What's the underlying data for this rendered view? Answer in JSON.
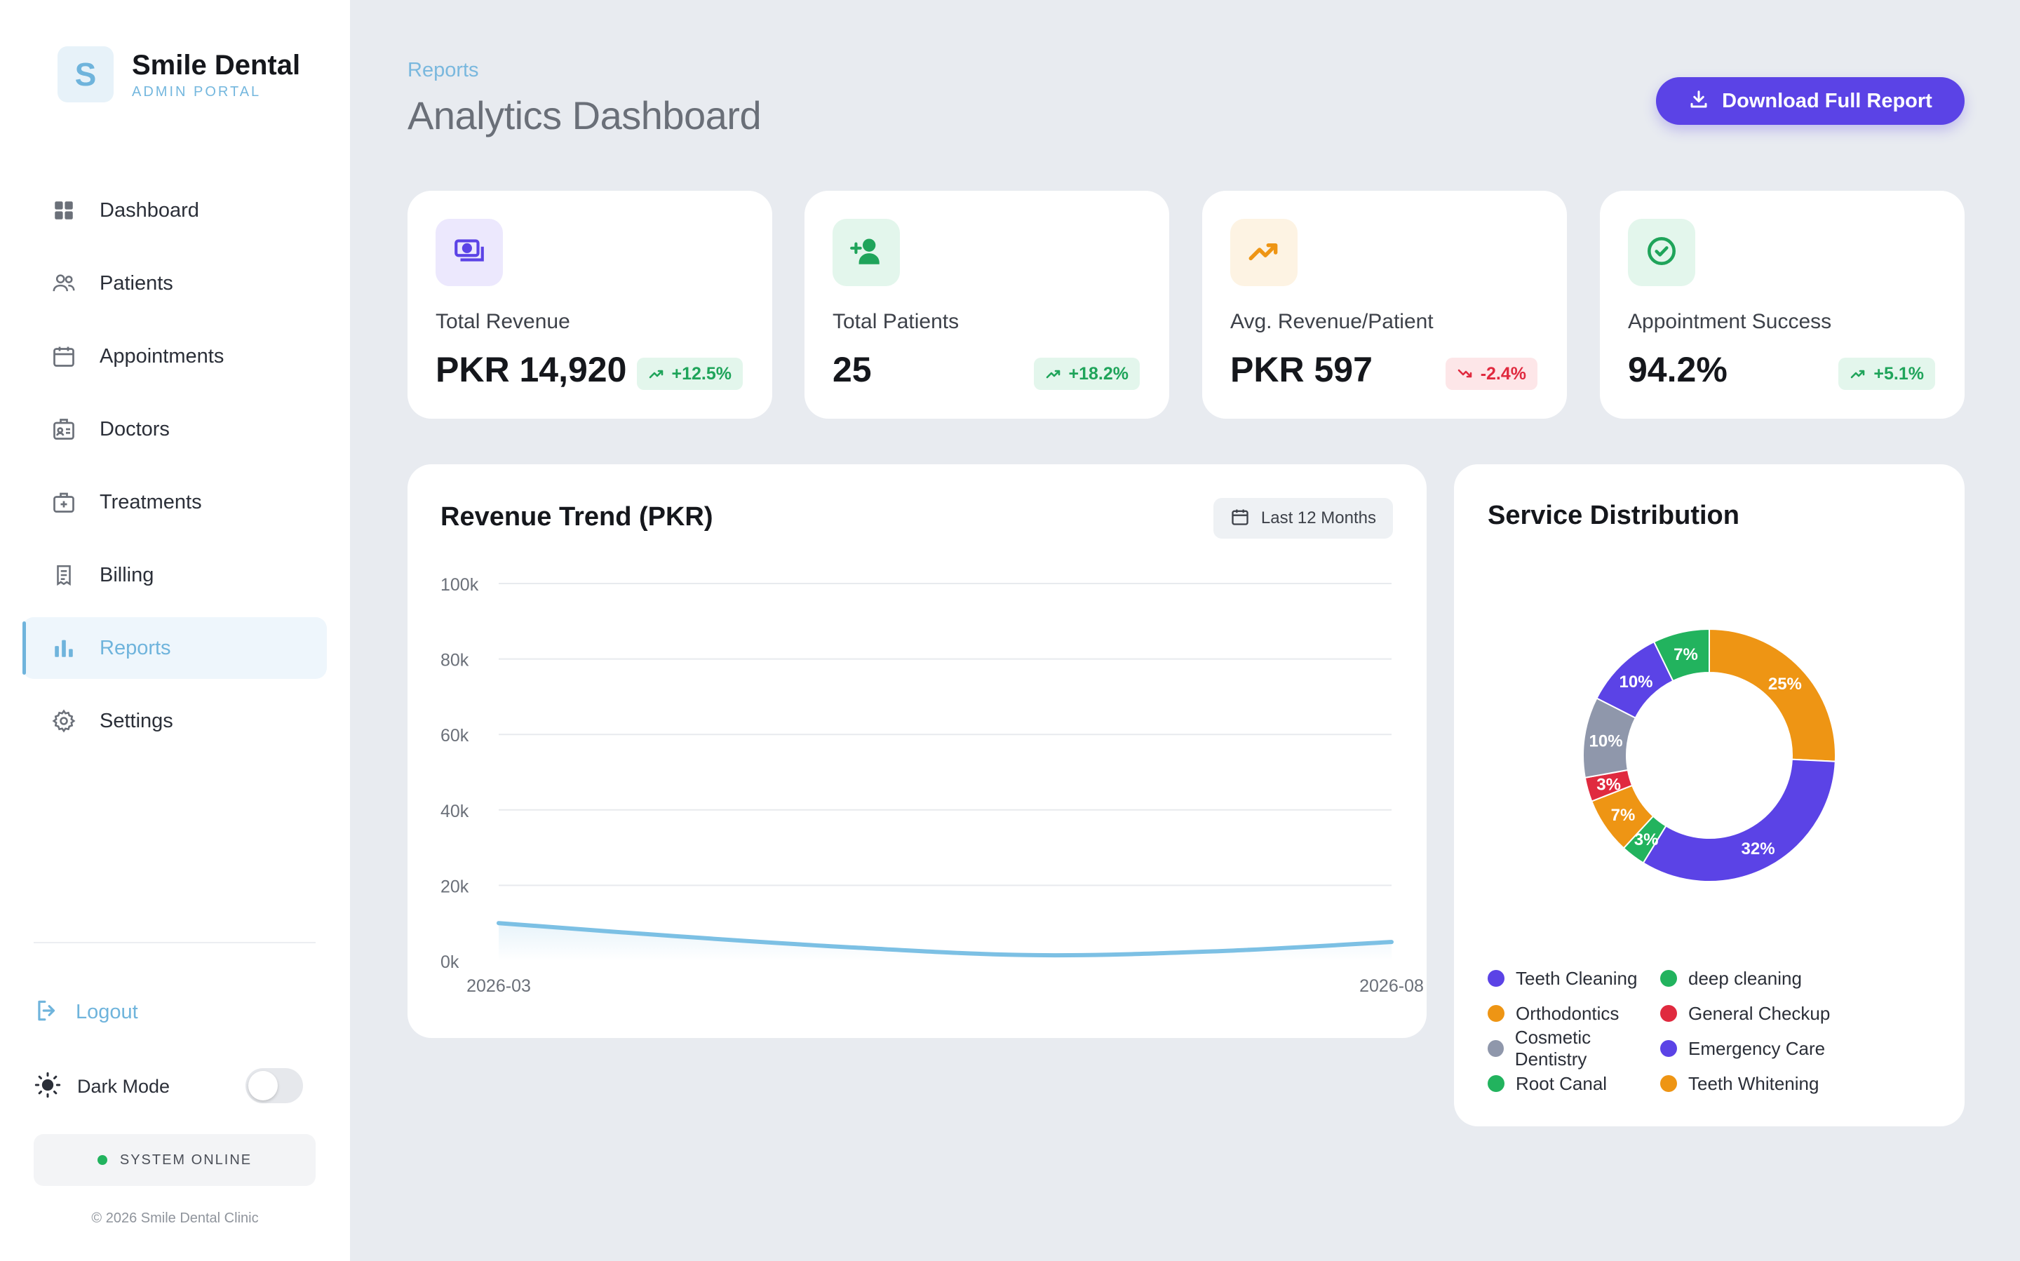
{
  "brand": {
    "logo_letter": "S",
    "name": "Smile Dental",
    "subtitle": "ADMIN PORTAL"
  },
  "nav": [
    {
      "label": "Dashboard",
      "icon": "grid-icon",
      "active": false
    },
    {
      "label": "Patients",
      "icon": "users-icon",
      "active": false
    },
    {
      "label": "Appointments",
      "icon": "calendar-icon",
      "active": false
    },
    {
      "label": "Doctors",
      "icon": "id-card-icon",
      "active": false
    },
    {
      "label": "Treatments",
      "icon": "medical-kit-icon",
      "active": false
    },
    {
      "label": "Billing",
      "icon": "receipt-icon",
      "active": false
    },
    {
      "label": "Reports",
      "icon": "bar-chart-icon",
      "active": true
    },
    {
      "label": "Settings",
      "icon": "gear-icon",
      "active": false
    }
  ],
  "logout_label": "Logout",
  "dark_mode": {
    "label": "Dark Mode",
    "enabled": false
  },
  "system_status": "SYSTEM ONLINE",
  "copyright": "© 2026 Smile Dental Clinic",
  "header": {
    "breadcrumb": "Reports",
    "title": "Analytics Dashboard",
    "download_label": "Download Full Report"
  },
  "kpis": [
    {
      "title": "Total Revenue",
      "value": "PKR 14,920",
      "change": "+12.5%",
      "trend": "up",
      "icon": "cash-icon",
      "icon_bg": "#ece8fd",
      "icon_color": "#5b43e6"
    },
    {
      "title": "Total Patients",
      "value": "25",
      "change": "+18.2%",
      "trend": "up",
      "icon": "add-user-icon",
      "icon_bg": "#e3f6ec",
      "icon_color": "#1fa45a"
    },
    {
      "title": "Avg. Revenue/Patient",
      "value": "PKR 597",
      "change": "-2.4%",
      "trend": "down",
      "icon": "trending-up-icon",
      "icon_bg": "#fdf3e3",
      "icon_color": "#ee9514"
    },
    {
      "title": "Appointment Success",
      "value": "94.2%",
      "change": "+5.1%",
      "trend": "up",
      "icon": "check-circle-icon",
      "icon_bg": "#e3f6ec",
      "icon_color": "#1fa45a"
    }
  ],
  "revenue_chart": {
    "title": "Revenue Trend (PKR)",
    "range_label": "Last 12 Months"
  },
  "service_chart": {
    "title": "Service Distribution"
  },
  "chart_data": [
    {
      "type": "area",
      "title": "Revenue Trend (PKR)",
      "x": [
        "2026-03",
        "2026-04",
        "2026-05",
        "2026-06",
        "2026-07",
        "2026-08"
      ],
      "x_tick_labels": [
        "2026-03",
        "2026-08"
      ],
      "values": [
        10000,
        6500,
        3500,
        1500,
        2500,
        5000
      ],
      "y_tick_labels": [
        "0k",
        "20k",
        "40k",
        "60k",
        "80k",
        "100k"
      ],
      "ylim": [
        0,
        100000
      ],
      "grid": true,
      "color": "#7cc0e4"
    },
    {
      "type": "pie",
      "title": "Service Distribution",
      "donut": true,
      "legend_position": "bottom",
      "slices": [
        {
          "label": "Teeth Whitening",
          "value": 25,
          "text": "25%",
          "color": "#ee9514"
        },
        {
          "label": "Teeth Cleaning",
          "value": 32,
          "text": "32%",
          "color": "#5b43e6"
        },
        {
          "label": "Root Canal",
          "value": 3,
          "text": "3%",
          "color": "#22b35e"
        },
        {
          "label": "Orthodontics",
          "value": 7,
          "text": "7%",
          "color": "#ee9514"
        },
        {
          "label": "General Checkup",
          "value": 3,
          "text": "3%",
          "color": "#e02a3f"
        },
        {
          "label": "Cosmetic Dentistry",
          "value": 10,
          "text": "10%",
          "color": "#8f97ab"
        },
        {
          "label": "Emergency Care",
          "value": 10,
          "text": "10%",
          "color": "#5b43e6"
        },
        {
          "label": "deep cleaning",
          "value": 7,
          "text": "7%",
          "color": "#22b35e"
        }
      ],
      "legend": [
        [
          "Teeth Cleaning",
          "deep cleaning"
        ],
        [
          "Orthodontics",
          "General Checkup"
        ],
        [
          "Cosmetic Dentistry",
          "Emergency Care"
        ],
        [
          "Root Canal",
          "Teeth Whitening"
        ]
      ]
    }
  ]
}
